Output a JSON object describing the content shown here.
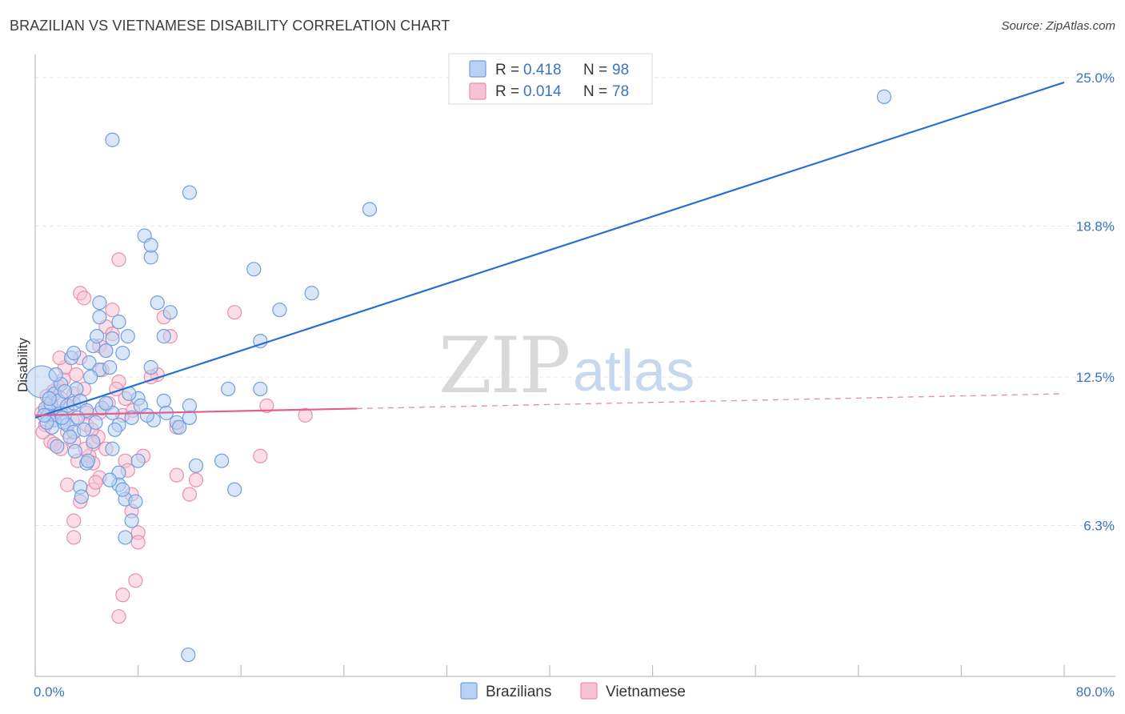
{
  "title": "BRAZILIAN VS VIETNAMESE DISABILITY CORRELATION CHART",
  "source": "Source: ZipAtlas.com",
  "watermark": {
    "zip": "ZIP",
    "atlas": "atlas"
  },
  "legend": {
    "rows": [
      {
        "r_label": "R =",
        "r_value": "0.418",
        "n_label": "N =",
        "n_value": "98"
      },
      {
        "r_label": "R =",
        "r_value": "0.014",
        "n_label": "N =",
        "n_value": "78"
      }
    ]
  },
  "bottom_legend": [
    "Brazilians",
    "Vietnamese"
  ],
  "colors": {
    "blue_fill": "#b9d2f3",
    "blue_stroke": "#6f9ee0",
    "blue_line": "#2a6fcf",
    "pink_fill": "#f7c3d3",
    "pink_stroke": "#e98fae",
    "pink_line": "#e0608c",
    "grid": "#e6e6e6",
    "axis": "#bdbdbd"
  },
  "chart_data": {
    "type": "scatter",
    "title": "BRAZILIAN VS VIETNAMESE DISABILITY CORRELATION CHART",
    "xlabel": "",
    "ylabel": "Disability",
    "xlim": [
      0,
      80
    ],
    "ylim": [
      0,
      25.6
    ],
    "x_tick_labels": [
      "0.0%",
      "80.0%"
    ],
    "y_ticks": [
      6.3,
      12.5,
      18.8,
      25.0
    ],
    "y_tick_labels": [
      "6.3%",
      "12.5%",
      "18.8%",
      "25.0%"
    ],
    "grid": true,
    "legend_position": "top-center",
    "series": [
      {
        "name": "Brazilians",
        "R": 0.418,
        "N": 98,
        "trend": {
          "x": [
            0,
            80
          ],
          "y": [
            10.8,
            24.8
          ],
          "dashed_from_x": null
        },
        "points": [
          [
            0.5,
            12.3
          ],
          [
            0.8,
            11.2
          ],
          [
            1.0,
            10.9
          ],
          [
            1.2,
            11.4
          ],
          [
            1.5,
            10.7
          ],
          [
            1.5,
            11.8
          ],
          [
            2.0,
            11.0
          ],
          [
            2.2,
            10.6
          ],
          [
            1.8,
            11.5
          ],
          [
            2.5,
            11.3
          ],
          [
            2.5,
            10.5
          ],
          [
            3.0,
            11.4
          ],
          [
            3.2,
            12.0
          ],
          [
            3.0,
            10.2
          ],
          [
            3.5,
            11.5
          ],
          [
            2.8,
            13.3
          ],
          [
            4.0,
            11.1
          ],
          [
            4.2,
            13.1
          ],
          [
            4.5,
            13.8
          ],
          [
            3.8,
            10.3
          ],
          [
            5.0,
            12.8
          ],
          [
            5.5,
            13.6
          ],
          [
            4.8,
            14.2
          ],
          [
            5.2,
            11.2
          ],
          [
            4.5,
            9.8
          ],
          [
            4.0,
            8.9
          ],
          [
            3.5,
            7.9
          ],
          [
            6.0,
            11.0
          ],
          [
            6.0,
            14.1
          ],
          [
            6.5,
            14.8
          ],
          [
            5.0,
            15.0
          ],
          [
            5.0,
            15.6
          ],
          [
            5.5,
            11.4
          ],
          [
            6.5,
            10.5
          ],
          [
            6.0,
            9.5
          ],
          [
            6.5,
            8.5
          ],
          [
            6.5,
            8.0
          ],
          [
            7.0,
            7.4
          ],
          [
            7.0,
            5.8
          ],
          [
            7.5,
            6.5
          ],
          [
            6.0,
            22.4
          ],
          [
            8.5,
            18.4
          ],
          [
            9.0,
            17.5
          ],
          [
            9.0,
            18.0
          ],
          [
            9.5,
            15.6
          ],
          [
            10.0,
            14.2
          ],
          [
            10.5,
            15.2
          ],
          [
            9.0,
            12.9
          ],
          [
            8.0,
            11.6
          ],
          [
            7.5,
            10.8
          ],
          [
            11.0,
            10.6
          ],
          [
            12.0,
            10.8
          ],
          [
            12.0,
            11.3
          ],
          [
            12.5,
            8.8
          ],
          [
            14.5,
            9.0
          ],
          [
            15.0,
            12.0
          ],
          [
            15.5,
            7.8
          ],
          [
            17.5,
            14.0
          ],
          [
            17.5,
            12.0
          ],
          [
            17.0,
            17.0
          ],
          [
            19.0,
            15.3
          ],
          [
            21.5,
            16.0
          ],
          [
            26.0,
            19.5
          ],
          [
            66.0,
            24.2
          ],
          [
            12.0,
            20.2
          ],
          [
            10.0,
            11.5
          ],
          [
            8.0,
            9.0
          ],
          [
            6.8,
            7.8
          ],
          [
            7.8,
            7.3
          ],
          [
            3.0,
            13.5
          ],
          [
            2.0,
            12.2
          ],
          [
            1.3,
            10.4
          ],
          [
            2.3,
            11.9
          ],
          [
            3.3,
            10.8
          ],
          [
            4.3,
            12.5
          ],
          [
            5.8,
            12.9
          ],
          [
            6.8,
            13.5
          ],
          [
            7.2,
            14.2
          ],
          [
            8.2,
            11.3
          ],
          [
            9.2,
            10.7
          ],
          [
            10.2,
            11.0
          ],
          [
            11.2,
            10.4
          ],
          [
            3.6,
            7.5
          ],
          [
            5.8,
            8.2
          ],
          [
            4.7,
            10.6
          ],
          [
            2.7,
            10.0
          ],
          [
            1.7,
            9.6
          ],
          [
            0.9,
            10.6
          ],
          [
            1.6,
            12.6
          ],
          [
            2.1,
            10.8
          ],
          [
            3.1,
            9.4
          ],
          [
            4.1,
            9.0
          ],
          [
            6.2,
            10.3
          ],
          [
            7.3,
            11.8
          ],
          [
            8.7,
            10.9
          ],
          [
            1.1,
            11.6
          ],
          [
            0.7,
            10.9
          ],
          [
            11.9,
            0.9
          ]
        ]
      },
      {
        "name": "Vietnamese",
        "R": 0.014,
        "N": 78,
        "trend": {
          "x": [
            0,
            80
          ],
          "y": [
            10.9,
            11.8
          ],
          "dashed_from_x": 25
        },
        "points": [
          [
            0.5,
            11.0
          ],
          [
            0.8,
            10.5
          ],
          [
            1.0,
            11.3
          ],
          [
            1.2,
            9.8
          ],
          [
            1.5,
            10.9
          ],
          [
            1.8,
            12.1
          ],
          [
            2.0,
            11.6
          ],
          [
            2.2,
            12.4
          ],
          [
            2.5,
            11.2
          ],
          [
            2.5,
            10.2
          ],
          [
            3.0,
            9.8
          ],
          [
            3.0,
            11.8
          ],
          [
            3.2,
            12.6
          ],
          [
            3.5,
            13.3
          ],
          [
            3.8,
            12.0
          ],
          [
            4.0,
            11.0
          ],
          [
            4.0,
            10.5
          ],
          [
            4.2,
            9.2
          ],
          [
            4.5,
            9.7
          ],
          [
            4.5,
            8.9
          ],
          [
            5.0,
            11.0
          ],
          [
            5.0,
            13.8
          ],
          [
            5.2,
            12.8
          ],
          [
            5.5,
            13.6
          ],
          [
            5.5,
            14.6
          ],
          [
            6.0,
            14.3
          ],
          [
            6.0,
            15.3
          ],
          [
            6.5,
            17.4
          ],
          [
            6.5,
            12.3
          ],
          [
            7.0,
            11.6
          ],
          [
            7.0,
            9.0
          ],
          [
            7.2,
            8.6
          ],
          [
            7.5,
            7.6
          ],
          [
            7.5,
            6.9
          ],
          [
            8.0,
            6.0
          ],
          [
            8.0,
            5.6
          ],
          [
            7.8,
            4.0
          ],
          [
            6.8,
            3.4
          ],
          [
            6.5,
            2.5
          ],
          [
            5.5,
            9.5
          ],
          [
            5.0,
            8.3
          ],
          [
            4.5,
            7.8
          ],
          [
            3.5,
            7.3
          ],
          [
            3.0,
            6.5
          ],
          [
            3.0,
            5.8
          ],
          [
            2.5,
            8.0
          ],
          [
            2.0,
            9.5
          ],
          [
            1.5,
            9.7
          ],
          [
            3.5,
            16.0
          ],
          [
            3.8,
            15.8
          ],
          [
            9.5,
            12.6
          ],
          [
            10.0,
            15.0
          ],
          [
            10.5,
            14.2
          ],
          [
            11.0,
            10.4
          ],
          [
            11.0,
            8.4
          ],
          [
            12.0,
            7.6
          ],
          [
            12.5,
            8.2
          ],
          [
            15.5,
            15.2
          ],
          [
            17.5,
            9.2
          ],
          [
            18.0,
            11.3
          ],
          [
            21.0,
            10.9
          ],
          [
            9.0,
            12.5
          ],
          [
            6.3,
            12.0
          ],
          [
            5.7,
            11.4
          ],
          [
            4.9,
            10.0
          ],
          [
            4.4,
            10.3
          ],
          [
            3.9,
            9.5
          ],
          [
            2.9,
            10.7
          ],
          [
            2.3,
            12.9
          ],
          [
            1.9,
            13.3
          ],
          [
            1.4,
            11.9
          ],
          [
            0.9,
            11.7
          ],
          [
            0.6,
            10.2
          ],
          [
            6.8,
            10.9
          ],
          [
            7.6,
            11.1
          ],
          [
            8.4,
            9.2
          ],
          [
            4.7,
            8.1
          ],
          [
            3.3,
            9.0
          ]
        ]
      }
    ]
  }
}
